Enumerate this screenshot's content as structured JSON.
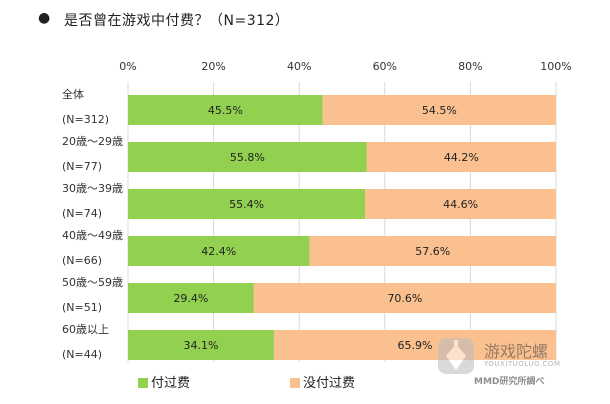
{
  "title": {
    "bullet": "●",
    "text": "是否曾在游戏中付费？（N=312）"
  },
  "colors": {
    "paid": "#92d050",
    "not_paid": "#fac090",
    "grid": "#d9d9d9"
  },
  "chart_data": {
    "type": "bar",
    "orientation": "horizontal",
    "stacked": true,
    "percent_scale": true,
    "xlim": [
      0,
      100
    ],
    "x_ticks": [
      "0%",
      "20%",
      "40%",
      "60%",
      "80%",
      "100%"
    ],
    "legend_position": "bottom-left",
    "categories": [
      {
        "line1": "全体",
        "line2": "(N=312)"
      },
      {
        "line1": "20歳～29歳",
        "line2": "(N=77)"
      },
      {
        "line1": "30歳～39歳",
        "line2": "(N=74)"
      },
      {
        "line1": "40歳～49歳",
        "line2": "(N=66)"
      },
      {
        "line1": "50歳～59歳",
        "line2": "(N=51)"
      },
      {
        "line1": "60歳以上",
        "line2": "(N=44)"
      }
    ],
    "series": [
      {
        "name": "付过费",
        "color": "#92d050",
        "values": [
          45.5,
          55.8,
          55.4,
          42.4,
          29.4,
          34.1
        ],
        "labels": [
          "45.5%",
          "55.8%",
          "55.4%",
          "42.4%",
          "29.4%",
          "34.1%"
        ]
      },
      {
        "name": "没付过费",
        "color": "#fac090",
        "values": [
          54.5,
          44.2,
          44.6,
          57.6,
          70.6,
          65.9
        ],
        "labels": [
          "54.5%",
          "44.2%",
          "44.6%",
          "57.6%",
          "70.6%",
          "65.9%"
        ]
      }
    ]
  },
  "legend": {
    "paid_label": "付过费",
    "not_paid_label": "没付过费"
  },
  "watermark": {
    "logo_text": "游戏陀螺",
    "site": "YOUXITUOLUO.COM",
    "credit": "MMD研究所調べ"
  }
}
